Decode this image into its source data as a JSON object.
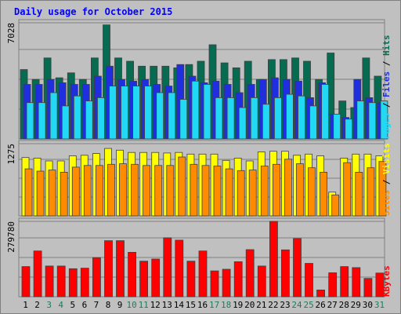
{
  "chart_data": {
    "type": "bar",
    "title": "Daily usage for October 2015",
    "categories": [
      "1",
      "2",
      "3",
      "4",
      "5",
      "6",
      "7",
      "8",
      "9",
      "10",
      "11",
      "12",
      "13",
      "14",
      "15",
      "16",
      "17",
      "18",
      "19",
      "20",
      "21",
      "22",
      "23",
      "24",
      "25",
      "26",
      "27",
      "28",
      "29",
      "30",
      "31"
    ],
    "weekend_days": [
      "3",
      "4",
      "10",
      "11",
      "17",
      "18",
      "24",
      "25",
      "31"
    ],
    "panels": [
      {
        "id": "hits",
        "axis_max_label": "7028",
        "ylim": [
          0,
          7028
        ],
        "side_labels": [
          "Pages",
          "Files",
          "Hits"
        ],
        "series": [
          {
            "name": "Hits",
            "color": "#066b51",
            "values": [
              4200,
              3600,
              4900,
              3700,
              4000,
              3600,
              4900,
              6900,
              4900,
              4700,
              4400,
              4400,
              4400,
              4300,
              4500,
              4700,
              5700,
              4600,
              4300,
              4700,
              3600,
              4800,
              4800,
              4900,
              4700,
              3600,
              5200,
              2300,
              1900,
              4900,
              3800
            ]
          },
          {
            "name": "Files",
            "color": "#1f2fe0",
            "values": [
              3300,
              3300,
              3600,
              3400,
              3300,
              3300,
              3800,
              4400,
              3600,
              3500,
              3600,
              3300,
              3200,
              4500,
              3800,
              3400,
              3500,
              3300,
              2800,
              3300,
              3600,
              3700,
              3600,
              3500,
              2500,
              3400,
              1500,
              1300,
              3600,
              2500,
              2200
            ]
          },
          {
            "name": "Pages",
            "color": "#21d8f5",
            "values": [
              2200,
              2200,
              2800,
              2000,
              2600,
              2300,
              2500,
              3200,
              3200,
              3200,
              3200,
              2800,
              2800,
              2400,
              3500,
              3300,
              2500,
              2500,
              1900,
              2500,
              2100,
              2500,
              2700,
              2600,
              2000,
              3300,
              1500,
              1200,
              2300,
              2200,
              2300
            ]
          }
        ]
      },
      {
        "id": "visits",
        "axis_max_label": "1275",
        "ylim": [
          0,
          1275
        ],
        "side_labels": [
          "Sites",
          "Visits"
        ],
        "series": [
          {
            "name": "Visits",
            "color": "#ffff00",
            "values": [
              1030,
              1020,
              970,
              970,
              1060,
              1070,
              1100,
              1190,
              1160,
              1120,
              1120,
              1120,
              1110,
              1120,
              1090,
              1090,
              1090,
              980,
              1020,
              970,
              1130,
              1140,
              1140,
              1070,
              1090,
              1060,
              420,
              1020,
              1090,
              1090,
              1060
            ]
          },
          {
            "name": "Sites",
            "color": "#ff8c00",
            "values": [
              830,
              790,
              810,
              770,
              860,
              890,
              890,
              910,
              920,
              910,
              890,
              890,
              890,
              1040,
              910,
              890,
              880,
              830,
              800,
              810,
              880,
              910,
              1000,
              920,
              850,
              770,
              370,
              940,
              770,
              850,
              960
            ]
          }
        ]
      },
      {
        "id": "kbytes",
        "axis_max_label": "279780",
        "ylim": [
          0,
          279780
        ],
        "side_labels": [
          "KBytes"
        ],
        "series": [
          {
            "name": "KBytes",
            "color": "#ff0000",
            "values": [
              112000,
              170000,
              114000,
              114000,
              104000,
              106000,
              145000,
              208000,
              208000,
              165000,
              132000,
              140000,
              219000,
              210000,
              132000,
              170000,
              96000,
              102000,
              130000,
              175000,
              114000,
              279780,
              174000,
              216000,
              124000,
              25000,
              89000,
              112000,
              108000,
              68000,
              88000
            ]
          }
        ]
      }
    ],
    "colors": {
      "weekend_label": "#1d7d58",
      "weekday_label": "#000000",
      "title": "#0000ff",
      "axis_label": "#000000"
    }
  }
}
